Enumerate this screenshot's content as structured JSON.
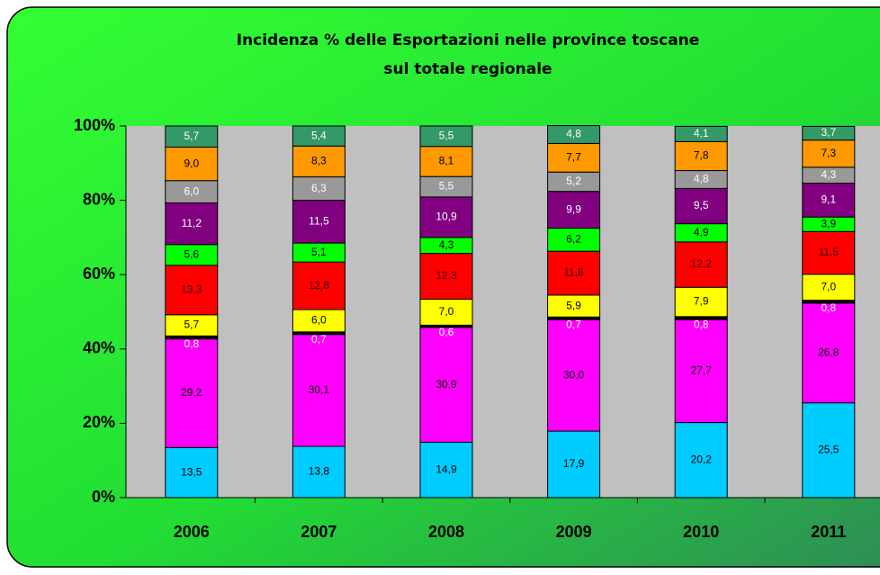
{
  "chart_data": {
    "type": "stacked_bar",
    "title": [
      "Incidenza % delle Esportazioni nelle province toscane",
      "sul totale regionale"
    ],
    "categories": [
      "2006",
      "2007",
      "2008",
      "2009",
      "2010",
      "2011"
    ],
    "series": [
      {
        "color": "#00ccff",
        "label_color": "#000000",
        "values": [
          13.5,
          13.8,
          14.9,
          17.9,
          20.2,
          25.5
        ],
        "value_labels": [
          "13,5",
          "13,8",
          "14,9",
          "17,9",
          "20,2",
          "25,5"
        ]
      },
      {
        "color": "#ff00ff",
        "label_color": "#000000",
        "values": [
          29.2,
          30.1,
          30.9,
          30.0,
          27.7,
          26.8
        ],
        "value_labels": [
          "29,2",
          "30,1",
          "30,9",
          "30,0",
          "27,7",
          "26,8"
        ]
      },
      {
        "color": "#000000",
        "label_color": "#ffffff",
        "values": [
          0.8,
          0.7,
          0.6,
          0.7,
          0.8,
          0.8
        ],
        "value_labels": [
          "0,8",
          "0,7",
          "0,6",
          "0,7",
          "0,8",
          "0,8"
        ]
      },
      {
        "color": "#ffff00",
        "label_color": "#000000",
        "values": [
          5.7,
          6.0,
          7.0,
          5.9,
          7.9,
          7.0
        ],
        "value_labels": [
          "5,7",
          "6,0",
          "7,0",
          "5,9",
          "7,9",
          "7,0"
        ]
      },
      {
        "color": "#ff0000",
        "label_color": "#330000",
        "values": [
          13.3,
          12.8,
          12.3,
          11.8,
          12.2,
          11.5
        ],
        "value_labels": [
          "13,3",
          "12,8",
          "12,3",
          "11,8",
          "12,2",
          "11,5"
        ]
      },
      {
        "color": "#00ff00",
        "label_color": "#000000",
        "values": [
          5.6,
          5.1,
          4.3,
          6.2,
          4.9,
          3.9
        ],
        "value_labels": [
          "5,6",
          "5,1",
          "4,3",
          "6,2",
          "4,9",
          "3,9"
        ]
      },
      {
        "color": "#800080",
        "label_color": "#ffffff",
        "values": [
          11.2,
          11.5,
          10.9,
          9.9,
          9.5,
          9.1
        ],
        "value_labels": [
          "11,2",
          "11,5",
          "10,9",
          "9,9",
          "9,5",
          "9,1"
        ]
      },
      {
        "color": "#999999",
        "label_color": "#ffffff",
        "values": [
          6.0,
          6.3,
          5.5,
          5.2,
          4.8,
          4.3
        ],
        "value_labels": [
          "6,0",
          "6,3",
          "5,5",
          "5,2",
          "4,8",
          "4,3"
        ]
      },
      {
        "color": "#ff9900",
        "label_color": "#000000",
        "values": [
          9.0,
          8.3,
          8.1,
          7.7,
          7.8,
          7.3
        ],
        "value_labels": [
          "9,0",
          "8,3",
          "8,1",
          "7,7",
          "7,8",
          "7,3"
        ]
      },
      {
        "color": "#339966",
        "label_color": "#ffffff",
        "values": [
          5.7,
          5.4,
          5.5,
          4.8,
          4.1,
          3.7
        ],
        "value_labels": [
          "5,7",
          "5,4",
          "5,5",
          "4,8",
          "4,1",
          "3,7"
        ]
      }
    ],
    "ylim": [
      0,
      100
    ],
    "yticks": [
      {
        "value": 0,
        "label": "0%"
      },
      {
        "value": 20,
        "label": "20%"
      },
      {
        "value": 40,
        "label": "40%"
      },
      {
        "value": 60,
        "label": "60%"
      },
      {
        "value": 80,
        "label": "80%"
      },
      {
        "value": 100,
        "label": "100%"
      }
    ],
    "grid": false
  }
}
